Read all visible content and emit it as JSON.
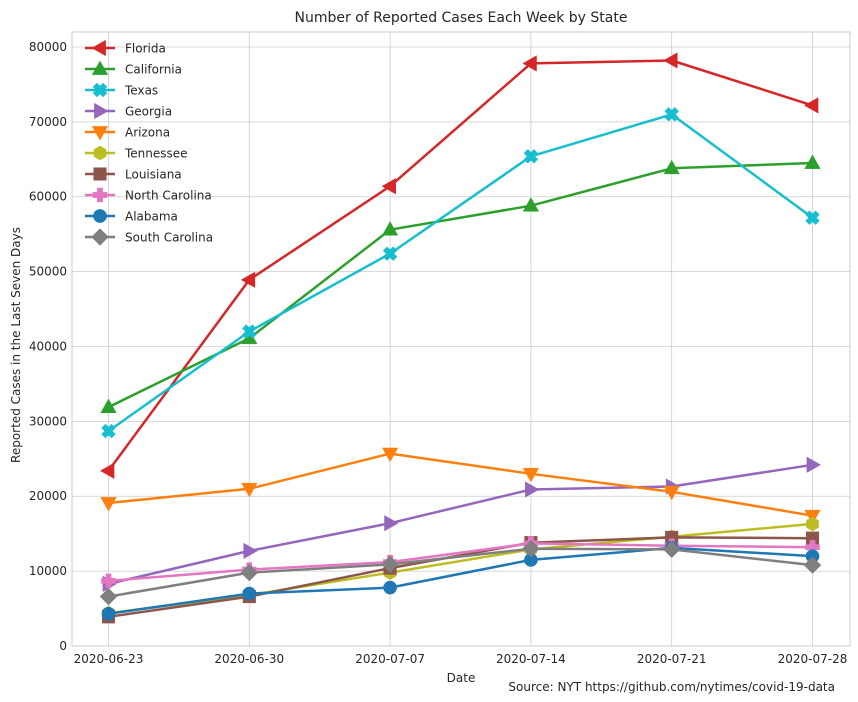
{
  "chart_data": {
    "type": "line",
    "title": "Number of Reported Cases Each Week by State",
    "xlabel": "Date",
    "ylabel": "Reported Cases in the Last Seven Days",
    "source_note": "Source: NYT https://github.com/nytimes/covid-19-data",
    "x": [
      "2020-06-23",
      "2020-06-30",
      "2020-07-07",
      "2020-07-14",
      "2020-07-21",
      "2020-07-28"
    ],
    "ylim": [
      0,
      82000
    ],
    "yticks": [
      0,
      10000,
      20000,
      30000,
      40000,
      50000,
      60000,
      70000,
      80000
    ],
    "grid": true,
    "legend_position": "top-left",
    "series": [
      {
        "name": "Florida",
        "color": "#d62728",
        "marker": "triangle-left",
        "values": [
          23400,
          48900,
          61400,
          77800,
          78200,
          72200
        ]
      },
      {
        "name": "California",
        "color": "#2ca02c",
        "marker": "triangle-up",
        "values": [
          31900,
          41100,
          55600,
          58800,
          63800,
          64500
        ]
      },
      {
        "name": "Texas",
        "color": "#17becf",
        "marker": "x-filled",
        "values": [
          28700,
          42000,
          52400,
          65400,
          71000,
          57200
        ]
      },
      {
        "name": "Georgia",
        "color": "#9467bd",
        "marker": "triangle-right",
        "values": [
          8300,
          12700,
          16400,
          20900,
          21300,
          24200
        ]
      },
      {
        "name": "Arizona",
        "color": "#ff7f0e",
        "marker": "triangle-down",
        "values": [
          19100,
          21000,
          25700,
          23000,
          20600,
          17400
        ]
      },
      {
        "name": "Tennessee",
        "color": "#bcbd22",
        "marker": "hexagon",
        "values": [
          4400,
          6800,
          9800,
          12900,
          14600,
          16300
        ]
      },
      {
        "name": "Louisiana",
        "color": "#8c564b",
        "marker": "square",
        "values": [
          3900,
          6600,
          10400,
          13800,
          14500,
          14400
        ]
      },
      {
        "name": "North Carolina",
        "color": "#e377c2",
        "marker": "plus-filled",
        "values": [
          8700,
          10200,
          11200,
          13700,
          13400,
          13200
        ]
      },
      {
        "name": "Alabama",
        "color": "#1f77b4",
        "marker": "circle",
        "values": [
          4300,
          7000,
          7800,
          11500,
          13100,
          12000
        ]
      },
      {
        "name": "South Carolina",
        "color": "#7f7f7f",
        "marker": "diamond",
        "values": [
          6600,
          9800,
          10900,
          13000,
          12900,
          10800
        ]
      }
    ]
  }
}
